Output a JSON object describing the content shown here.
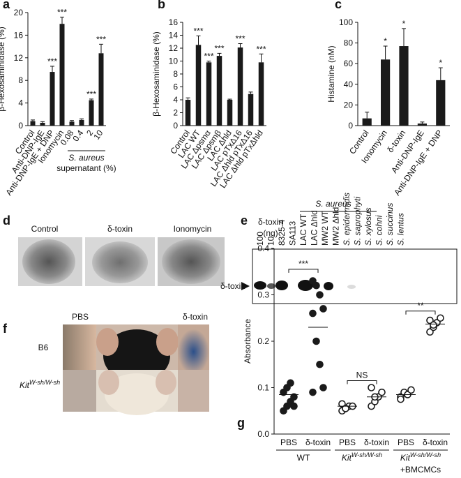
{
  "chart_data": [
    {
      "type": "bar",
      "panel_label": "a",
      "y_label": "β-Hexosaminidase (%)",
      "categories": [
        "Control",
        "Anti-DNP-IgE",
        "Anti-DNP-IgE + DNP",
        "Ionomycin",
        "0.08",
        "0.4",
        "2",
        "10"
      ],
      "values": [
        0.8,
        0.5,
        9.5,
        18,
        0.7,
        1.0,
        4.5,
        12.8
      ],
      "errors": [
        0.2,
        0.2,
        1.0,
        1.2,
        0.2,
        0.2,
        0.2,
        1.6
      ],
      "significance": [
        null,
        null,
        "***",
        "***",
        null,
        null,
        "***",
        "***"
      ],
      "group_label": [
        "S. aureus",
        "supernatant (%)"
      ],
      "color": "#1a1a1a",
      "ylim": [
        0,
        20
      ],
      "yticks": [
        0,
        4,
        8,
        12,
        16,
        20
      ]
    },
    {
      "type": "bar",
      "panel_label": "b",
      "y_label": "β-Hexosaminidase (%)",
      "categories": [
        "Control",
        "LAC WT",
        "LAC Δpsmα",
        "LAC Δpsmβ",
        "LAC Δhld",
        "LAC pTxΔ16",
        "LAC Δhld pTxΔ16",
        "LAC Δhld pTxΔhld"
      ],
      "values": [
        4.0,
        12.5,
        9.8,
        10.8,
        4.0,
        12.1,
        4.9,
        9.8
      ],
      "errors": [
        0.3,
        1.4,
        0.2,
        0.4,
        0.1,
        0.6,
        0.3,
        1.3
      ],
      "significance": [
        null,
        "***",
        "***",
        "***",
        null,
        "***",
        null,
        "***"
      ],
      "color": "#1a1a1a",
      "ylim": [
        0,
        16
      ],
      "yticks": [
        0,
        2,
        4,
        6,
        8,
        10,
        12,
        14,
        16
      ]
    },
    {
      "type": "bar",
      "panel_label": "c",
      "y_label": "Histamine (nM)",
      "categories": [
        "Control",
        "Ionomycin",
        "δ-toxin",
        "Anti-DNP-IgE",
        "Anti-DNP-IgE + DNP"
      ],
      "values": [
        7,
        64,
        77,
        2,
        44
      ],
      "errors": [
        6,
        13,
        17,
        1.5,
        12
      ],
      "significance": [
        null,
        "*",
        "*",
        null,
        "*"
      ],
      "color": "#1a1a1a",
      "ylim": [
        0,
        100
      ],
      "yticks": [
        0,
        20,
        40,
        60,
        80,
        100
      ]
    },
    {
      "type": "strip",
      "panel_label": "g",
      "y_label": "Absorbance",
      "categories": [
        "PBS",
        "δ-toxin",
        "PBS",
        "δ-toxin",
        "PBS",
        "δ-toxin"
      ],
      "values": [
        [
          0.05,
          0.06,
          0.07,
          0.08,
          0.09,
          0.1,
          0.11,
          0.06
        ],
        [
          0.33,
          0.32,
          0.3,
          0.27,
          0.26,
          0.2,
          0.15,
          0.1,
          0.09
        ],
        [
          0.05,
          0.055,
          0.06,
          0.06,
          0.065,
          0.055
        ],
        [
          0.06,
          0.07,
          0.08,
          0.09,
          0.1,
          0.08
        ],
        [
          0.08,
          0.09,
          0.085,
          0.095,
          0.075
        ],
        [
          0.22,
          0.23,
          0.24,
          0.25,
          0.245,
          0.235
        ]
      ],
      "means": [
        0.085,
        0.23,
        0.06,
        0.08,
        0.085,
        0.237
      ],
      "filled": [
        true,
        true,
        false,
        false,
        false,
        false
      ],
      "comparisons": [
        "***",
        "NS",
        "**"
      ],
      "groups": [
        {
          "name": "WT"
        },
        {
          "base": "Kit",
          "sup": "W-sh/W-sh"
        },
        {
          "base": "Kit",
          "sup": "W-sh/W-sh",
          "extra": "+BMCMCs"
        }
      ],
      "color": "#1a1a1a",
      "ylim": [
        0,
        0.4
      ],
      "yticks": [
        {
          "value": 0,
          "label": "0.0"
        },
        0.1,
        0.2,
        0.3,
        0.4
      ]
    }
  ],
  "panels": {
    "d": {
      "label": "d",
      "captions": [
        "Control",
        "δ-toxin",
        "Ionomycin"
      ]
    },
    "e": {
      "label": "e",
      "dose_header": [
        "δ-toxin",
        "(ng)"
      ],
      "strain_header": "S. aureus",
      "lanes": [
        "100",
        "10",
        "8325-4",
        "SA113",
        "LAC WT",
        "LAC Δhld",
        "MW2 WT",
        "MW2 Δhld",
        "S. epidermidis",
        "S. saprophyti",
        "S. xylosus",
        "S. cohni",
        "S. succinus",
        "S. lentus"
      ],
      "band_label": "δ-toxin"
    },
    "f": {
      "label": "f",
      "columns": [
        "PBS",
        "δ-toxin"
      ],
      "rows": [
        "B6",
        {
          "base": "Kit",
          "sup": "W-sh/W-sh"
        }
      ]
    }
  }
}
